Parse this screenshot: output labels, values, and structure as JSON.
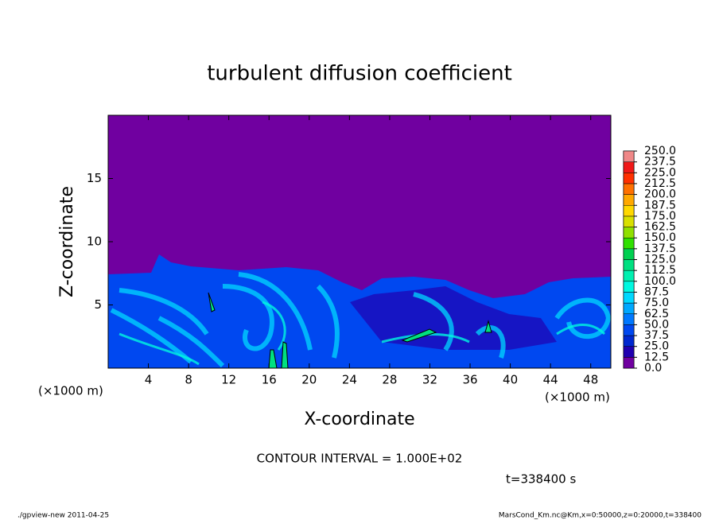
{
  "chart_data": {
    "type": "contour",
    "title": "turbulent diffusion coefficient",
    "x_label": "X-coordinate",
    "y_label": "Z-coordinate",
    "x_unit": "(×1000 m)",
    "xlim": [
      0,
      50
    ],
    "xticks": [
      4,
      8,
      12,
      16,
      20,
      24,
      28,
      32,
      36,
      40,
      44,
      48
    ],
    "ylim": [
      0,
      20
    ],
    "yticks": [
      5,
      10,
      15
    ],
    "colorbar": {
      "levels": [
        {
          "value": 0,
          "label": "0.0"
        },
        {
          "value": 12.5,
          "label": "12.5"
        },
        {
          "value": 25,
          "label": "25.0"
        },
        {
          "value": 37.5,
          "label": "37.5"
        },
        {
          "value": 50,
          "label": "50.0"
        },
        {
          "value": 62.5,
          "label": "62.5"
        },
        {
          "value": 75,
          "label": "75.0"
        },
        {
          "value": 87.5,
          "label": "87.5"
        },
        {
          "value": 100,
          "label": "100.0"
        },
        {
          "value": 112.5,
          "label": "112.5"
        },
        {
          "value": 125,
          "label": "125.0"
        },
        {
          "value": 137.5,
          "label": "137.5"
        },
        {
          "value": 150,
          "label": "150.0"
        },
        {
          "value": 162.5,
          "label": "162.5"
        },
        {
          "value": 175,
          "label": "175.0"
        },
        {
          "value": 187.5,
          "label": "187.5"
        },
        {
          "value": 200,
          "label": "200.0"
        },
        {
          "value": 212.5,
          "label": "212.5"
        },
        {
          "value": 225,
          "label": "225.0"
        },
        {
          "value": 237.5,
          "label": "237.5"
        },
        {
          "value": 250,
          "label": "250.0"
        }
      ],
      "colors": [
        "#7000a0",
        "#2000b0",
        "#0028d0",
        "#0048f0",
        "#0078ff",
        "#00a8ff",
        "#00d8ff",
        "#00f8e0",
        "#00f0b0",
        "#00e080",
        "#00d050",
        "#30e000",
        "#90e000",
        "#d8e000",
        "#ffd800",
        "#ffa800",
        "#ff7000",
        "#ff3000",
        "#f01818",
        "#f08888"
      ]
    },
    "annotations": {
      "contour_interval": "CONTOUR INTERVAL = 1.000E+02",
      "time": "t=338400 s",
      "footer_left": "./gpview-new  2011-04-25",
      "footer_right": "MarsCond_Km.nc@Km,x=0:50000,z=0:20000,t=338400"
    }
  }
}
